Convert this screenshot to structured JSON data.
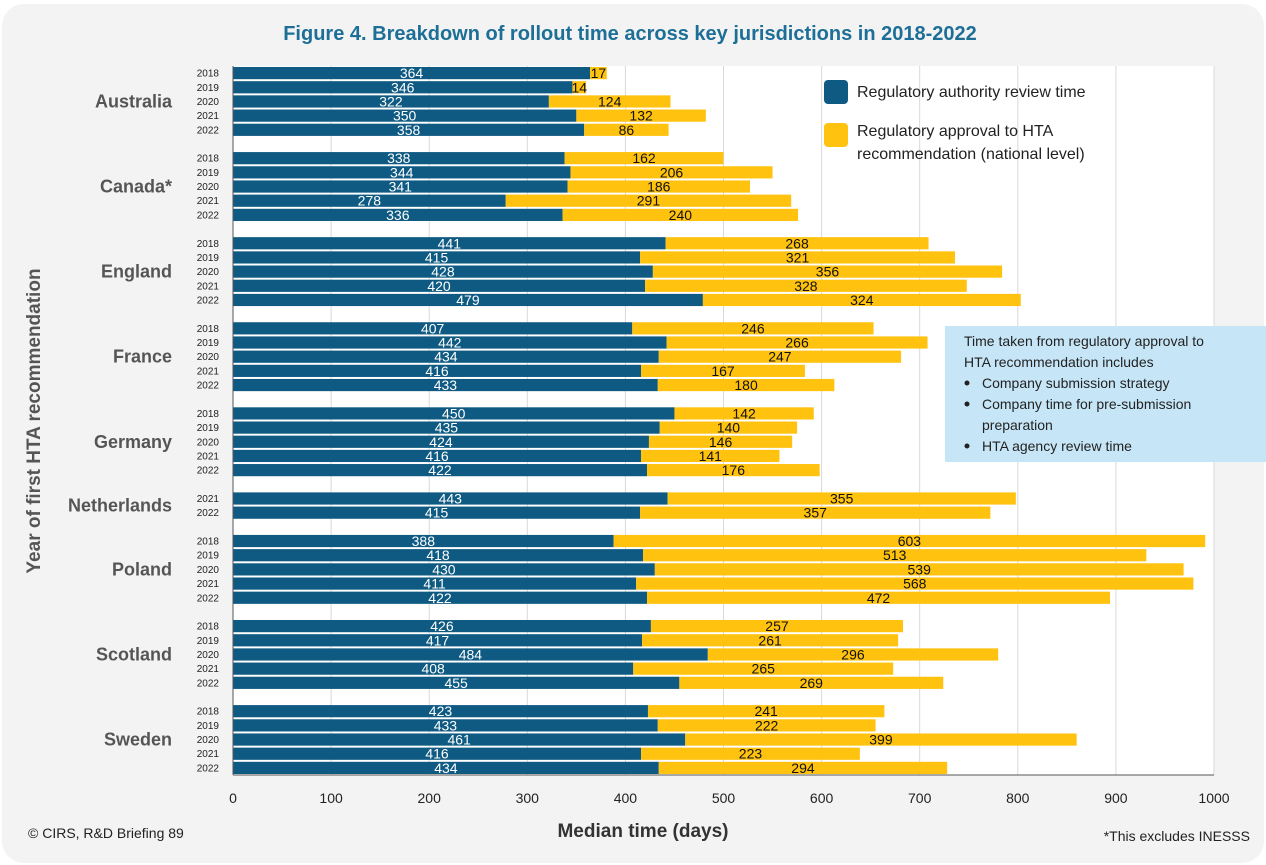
{
  "colors": {
    "review": "#0e5a82",
    "approval_to_hta": "#ffc20e",
    "title": "#1d6f97",
    "note_box": "#c6e6f7",
    "grid": "#d9d9d9",
    "card": "#f3f3f3"
  },
  "note": {
    "heading_lines": [
      "Time taken from regulatory approval to",
      "HTA recommendation includes"
    ],
    "bullets": [
      [
        "Company submission strategy"
      ],
      [
        "Company time for pre-submission",
        "preparation"
      ],
      [
        "HTA agency review time"
      ]
    ]
  },
  "footer": {
    "left": "© CIRS, R&D Briefing 89",
    "right": "*This excludes INESSS"
  },
  "chart_data": {
    "type": "bar",
    "orientation": "horizontal",
    "stacked": true,
    "title": "Figure 4. Breakdown of rollout time across key jurisdictions in 2018-2022",
    "xlabel": "Median time (days)",
    "ylabel": "Year of first HTA recommendation",
    "xlim": [
      0,
      1000
    ],
    "xticks": [
      0,
      100,
      200,
      300,
      400,
      500,
      600,
      700,
      800,
      900,
      1000
    ],
    "grid": "vertical",
    "legend_position": "top-right",
    "series": [
      {
        "name": "Regulatory authority review time",
        "color": "#0e5a82"
      },
      {
        "name": "Regulatory approval to HTA recommendation (national level)",
        "legend_lines": [
          "Regulatory approval to HTA",
          "recommendation (national level)"
        ],
        "color": "#ffc20e"
      }
    ],
    "groups": [
      {
        "name": "Australia",
        "rows": [
          {
            "year": "2018",
            "review": 364,
            "approval_to_hta": 17
          },
          {
            "year": "2019",
            "review": 346,
            "approval_to_hta": 14
          },
          {
            "year": "2020",
            "review": 322,
            "approval_to_hta": 124
          },
          {
            "year": "2021",
            "review": 350,
            "approval_to_hta": 132
          },
          {
            "year": "2022",
            "review": 358,
            "approval_to_hta": 86
          }
        ]
      },
      {
        "name": "Canada*",
        "rows": [
          {
            "year": "2018",
            "review": 338,
            "approval_to_hta": 162
          },
          {
            "year": "2019",
            "review": 344,
            "approval_to_hta": 206
          },
          {
            "year": "2020",
            "review": 341,
            "approval_to_hta": 186
          },
          {
            "year": "2021",
            "review": 278,
            "approval_to_hta": 291
          },
          {
            "year": "2022",
            "review": 336,
            "approval_to_hta": 240
          }
        ]
      },
      {
        "name": "England",
        "rows": [
          {
            "year": "2018",
            "review": 441,
            "approval_to_hta": 268
          },
          {
            "year": "2019",
            "review": 415,
            "approval_to_hta": 321
          },
          {
            "year": "2020",
            "review": 428,
            "approval_to_hta": 356
          },
          {
            "year": "2021",
            "review": 420,
            "approval_to_hta": 328
          },
          {
            "year": "2022",
            "review": 479,
            "approval_to_hta": 324
          }
        ]
      },
      {
        "name": "France",
        "rows": [
          {
            "year": "2018",
            "review": 407,
            "approval_to_hta": 246
          },
          {
            "year": "2019",
            "review": 442,
            "approval_to_hta": 266
          },
          {
            "year": "2020",
            "review": 434,
            "approval_to_hta": 247
          },
          {
            "year": "2021",
            "review": 416,
            "approval_to_hta": 167
          },
          {
            "year": "2022",
            "review": 433,
            "approval_to_hta": 180
          }
        ]
      },
      {
        "name": "Germany",
        "rows": [
          {
            "year": "2018",
            "review": 450,
            "approval_to_hta": 142
          },
          {
            "year": "2019",
            "review": 435,
            "approval_to_hta": 140
          },
          {
            "year": "2020",
            "review": 424,
            "approval_to_hta": 146
          },
          {
            "year": "2021",
            "review": 416,
            "approval_to_hta": 141
          },
          {
            "year": "2022",
            "review": 422,
            "approval_to_hta": 176
          }
        ]
      },
      {
        "name": "Netherlands",
        "rows": [
          {
            "year": "2021",
            "review": 443,
            "approval_to_hta": 355
          },
          {
            "year": "2022",
            "review": 415,
            "approval_to_hta": 357
          }
        ]
      },
      {
        "name": "Poland",
        "rows": [
          {
            "year": "2018",
            "review": 388,
            "approval_to_hta": 603
          },
          {
            "year": "2019",
            "review": 418,
            "approval_to_hta": 513
          },
          {
            "year": "2020",
            "review": 430,
            "approval_to_hta": 539
          },
          {
            "year": "2021",
            "review": 411,
            "approval_to_hta": 568
          },
          {
            "year": "2022",
            "review": 422,
            "approval_to_hta": 472
          }
        ]
      },
      {
        "name": "Scotland",
        "rows": [
          {
            "year": "2018",
            "review": 426,
            "approval_to_hta": 257
          },
          {
            "year": "2019",
            "review": 417,
            "approval_to_hta": 261
          },
          {
            "year": "2020",
            "review": 484,
            "approval_to_hta": 296
          },
          {
            "year": "2021",
            "review": 408,
            "approval_to_hta": 265
          },
          {
            "year": "2022",
            "review": 455,
            "approval_to_hta": 269
          }
        ]
      },
      {
        "name": "Sweden",
        "rows": [
          {
            "year": "2018",
            "review": 423,
            "approval_to_hta": 241
          },
          {
            "year": "2019",
            "review": 433,
            "approval_to_hta": 222
          },
          {
            "year": "2020",
            "review": 461,
            "approval_to_hta": 399
          },
          {
            "year": "2021",
            "review": 416,
            "approval_to_hta": 223
          },
          {
            "year": "2022",
            "review": 434,
            "approval_to_hta": 294
          }
        ]
      }
    ]
  }
}
